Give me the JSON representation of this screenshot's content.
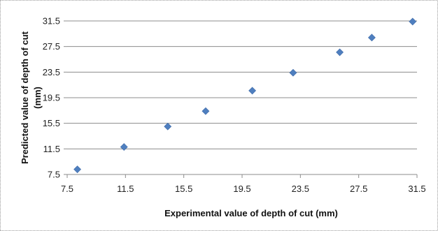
{
  "chart_data": {
    "type": "scatter",
    "title": "",
    "xlabel": "Experimental value of depth of cut (mm)",
    "ylabel_lines": [
      "Predicted value of depth of cut",
      "(mm)"
    ],
    "xlim": [
      7.5,
      31.5
    ],
    "ylim": [
      7.5,
      31.5
    ],
    "xticks": [
      "7.5",
      "11.5",
      "15.5",
      "19.5",
      "23.5",
      "27.5",
      "31.5"
    ],
    "yticks": [
      "7.5",
      "11.5",
      "15.5",
      "19.5",
      "23.5",
      "27.5",
      "31.5"
    ],
    "grid": "horizontal",
    "legend": "none",
    "marker": "diamond",
    "color": "#4f7fbf",
    "points": [
      {
        "x": 8.2,
        "y": 8.3
      },
      {
        "x": 11.4,
        "y": 11.8
      },
      {
        "x": 14.4,
        "y": 15.0
      },
      {
        "x": 17.0,
        "y": 17.4
      },
      {
        "x": 20.2,
        "y": 20.6
      },
      {
        "x": 23.0,
        "y": 23.4
      },
      {
        "x": 26.2,
        "y": 26.6
      },
      {
        "x": 28.4,
        "y": 28.9
      },
      {
        "x": 31.2,
        "y": 31.4
      }
    ]
  }
}
